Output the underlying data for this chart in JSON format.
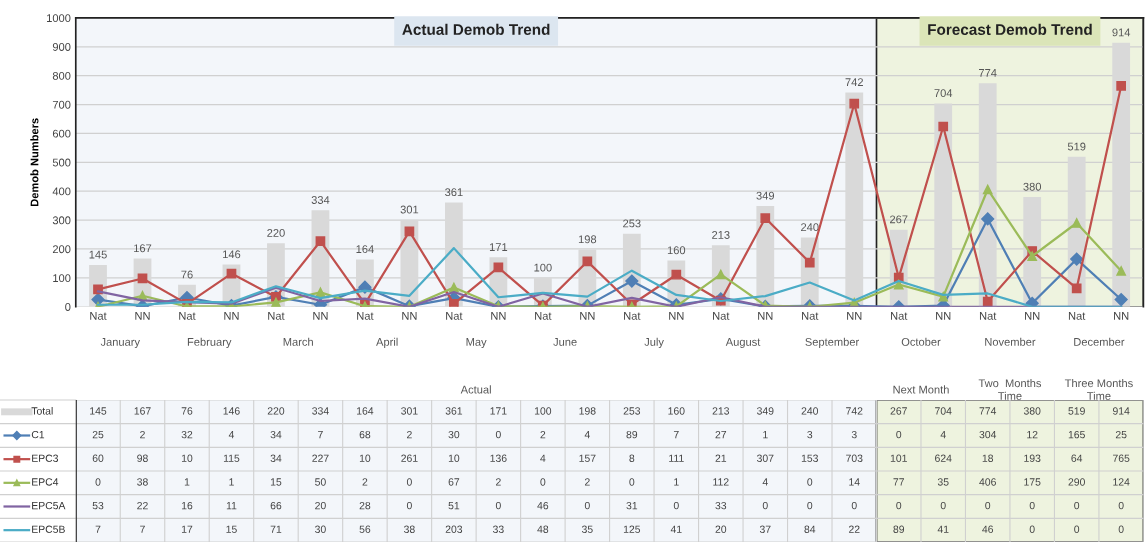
{
  "chart_data": {
    "type": "line",
    "ylabel": "Demob Numbers",
    "categories": [
      "Nat",
      "NN",
      "Nat",
      "NN",
      "Nat",
      "NN",
      "Nat",
      "NN",
      "Nat",
      "NN",
      "Nat",
      "NN",
      "Nat",
      "NN",
      "Nat",
      "NN",
      "Nat",
      "NN",
      "Nat",
      "NN",
      "Nat",
      "NN",
      "Nat",
      "NN"
    ],
    "series": [
      {
        "name": "Total",
        "type": "bar",
        "color": "#d9d9d9",
        "values": [
          145,
          167,
          76,
          146,
          220,
          334,
          164,
          301,
          361,
          171,
          100,
          198,
          253,
          160,
          213,
          349,
          240,
          742,
          267,
          704,
          774,
          380,
          519,
          914
        ],
        "value_labels": [
          "145",
          "167",
          "76",
          "146",
          "220",
          "334",
          "164",
          "301",
          "361",
          "171",
          "100",
          "198",
          "253",
          "160",
          "213",
          "349",
          "240",
          "742",
          "267",
          "704",
          "774",
          "380",
          "519",
          "914"
        ]
      },
      {
        "name": "C1",
        "color": "#4f7fb5",
        "marker": "diamond",
        "values": [
          25,
          2,
          32,
          4,
          34,
          7,
          68,
          2,
          30,
          0,
          2,
          4,
          89,
          7,
          27,
          1,
          3,
          3,
          0,
          4,
          304,
          12,
          165,
          25
        ]
      },
      {
        "name": "EPC3",
        "color": "#c0504d",
        "marker": "square",
        "values": [
          60,
          98,
          10,
          115,
          34,
          227,
          10,
          261,
          10,
          136,
          4,
          157,
          8,
          111,
          21,
          307,
          153,
          703,
          101,
          624,
          18,
          193,
          64,
          765
        ]
      },
      {
        "name": "EPC4",
        "color": "#9bbb59",
        "marker": "triangle",
        "values": [
          0,
          38,
          1,
          1,
          15,
          50,
          2,
          0,
          67,
          2,
          0,
          2,
          0,
          1,
          112,
          4,
          0,
          14,
          77,
          35,
          406,
          175,
          290,
          124
        ]
      },
      {
        "name": "EPC5A",
        "color": "#8064a2",
        "values": [
          53,
          22,
          16,
          11,
          66,
          20,
          28,
          0,
          51,
          0,
          46,
          0,
          31,
          0,
          33,
          0,
          0,
          0,
          0,
          0,
          0,
          0,
          0,
          0
        ]
      },
      {
        "name": "EPC5B",
        "color": "#4bacc6",
        "values": [
          7,
          7,
          17,
          15,
          71,
          30,
          56,
          38,
          203,
          33,
          48,
          35,
          125,
          41,
          20,
          37,
          84,
          22,
          89,
          41,
          46,
          0,
          0,
          0
        ]
      }
    ],
    "ylim": [
      0,
      1000
    ],
    "yticks": [
      0,
      100,
      200,
      300,
      400,
      500,
      600,
      700,
      800,
      900,
      1000
    ],
    "grid": "y",
    "data_labels": true,
    "totals": [
      "145",
      "167",
      "76",
      "146",
      "220",
      "334",
      "164",
      "301",
      "361",
      "171",
      "100",
      "198",
      "253",
      "160",
      "213",
      "349",
      "240",
      "742",
      "267",
      "704",
      "774",
      "380",
      "519",
      "914"
    ],
    "legend": "bottom left",
    "annotations": [
      "January",
      "February",
      "March",
      "April",
      "May",
      "June",
      "July",
      "August",
      "September",
      "October",
      "November",
      "December",
      "Actual",
      "Next Month",
      "Two  Months\nTime",
      "Three Months\nTime",
      "Actual Demob Trend",
      "Forecast Demob Trend"
    ]
  }
}
